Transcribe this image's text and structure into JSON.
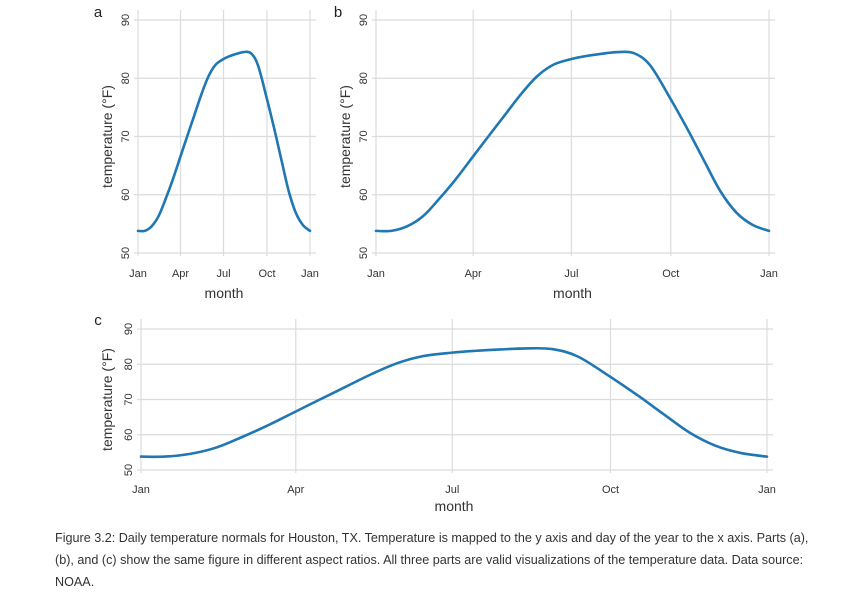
{
  "chart_data": [
    {
      "panel": "a",
      "type": "line",
      "xlabel": "month",
      "ylabel": "temperature (°F)",
      "ylim": [
        50,
        90
      ],
      "yticks": [
        50,
        60,
        70,
        80,
        90
      ],
      "xticks": [
        {
          "value": 1,
          "label": "Jan"
        },
        {
          "value": 91,
          "label": "Apr"
        },
        {
          "value": 182,
          "label": "Jul"
        },
        {
          "value": 274,
          "label": "Oct"
        },
        {
          "value": 365,
          "label": "Jan"
        }
      ],
      "grid": true,
      "series": [
        {
          "color": "#1f77b4",
          "x": [
            1,
            15,
            30,
            45,
            60,
            75,
            91,
            105,
            120,
            135,
            150,
            165,
            182,
            195,
            210,
            225,
            240,
            255,
            274,
            290,
            305,
            320,
            335,
            350,
            365
          ],
          "y": [
            53.8,
            53.8,
            54.6,
            56.4,
            59.4,
            62.7,
            66.6,
            70.0,
            73.6,
            77.2,
            80.3,
            82.3,
            83.3,
            83.8,
            84.2,
            84.5,
            84.3,
            82.2,
            76.4,
            71.1,
            65.8,
            60.6,
            56.9,
            54.8,
            53.8
          ]
        }
      ]
    },
    {
      "panel": "b",
      "type": "line",
      "xlabel": "month",
      "ylabel": "temperature (°F)",
      "ylim": [
        50,
        90
      ],
      "yticks": [
        50,
        60,
        70,
        80,
        90
      ],
      "xticks": [
        {
          "value": 1,
          "label": "Jan"
        },
        {
          "value": 91,
          "label": "Apr"
        },
        {
          "value": 182,
          "label": "Jul"
        },
        {
          "value": 274,
          "label": "Oct"
        },
        {
          "value": 365,
          "label": "Jan"
        }
      ],
      "grid": true,
      "series": [
        {
          "color": "#1f77b4",
          "x": [
            1,
            15,
            30,
            45,
            60,
            75,
            91,
            105,
            120,
            135,
            150,
            165,
            182,
            195,
            210,
            225,
            240,
            255,
            274,
            290,
            305,
            320,
            335,
            350,
            365
          ],
          "y": [
            53.8,
            53.8,
            54.6,
            56.4,
            59.4,
            62.7,
            66.6,
            70.0,
            73.6,
            77.2,
            80.3,
            82.3,
            83.3,
            83.8,
            84.2,
            84.5,
            84.3,
            82.2,
            76.4,
            71.1,
            65.8,
            60.6,
            56.9,
            54.8,
            53.8
          ]
        }
      ]
    },
    {
      "panel": "c",
      "type": "line",
      "xlabel": "month",
      "ylabel": "temperature (°F)",
      "ylim": [
        50,
        90
      ],
      "yticks": [
        50,
        60,
        70,
        80,
        90
      ],
      "xticks": [
        {
          "value": 1,
          "label": "Jan"
        },
        {
          "value": 91,
          "label": "Apr"
        },
        {
          "value": 182,
          "label": "Jul"
        },
        {
          "value": 274,
          "label": "Oct"
        },
        {
          "value": 365,
          "label": "Jan"
        }
      ],
      "grid": true,
      "series": [
        {
          "color": "#1f77b4",
          "x": [
            1,
            15,
            30,
            45,
            60,
            75,
            91,
            105,
            120,
            135,
            150,
            165,
            182,
            195,
            210,
            225,
            240,
            255,
            274,
            290,
            305,
            320,
            335,
            350,
            365
          ],
          "y": [
            53.8,
            53.8,
            54.6,
            56.4,
            59.4,
            62.7,
            66.6,
            70.0,
            73.6,
            77.2,
            80.3,
            82.3,
            83.3,
            83.8,
            84.2,
            84.5,
            84.3,
            82.2,
            76.4,
            71.1,
            65.8,
            60.6,
            56.9,
            54.8,
            53.8
          ]
        }
      ]
    }
  ],
  "caption": "Figure 3.2: Daily temperature normals for Houston, TX. Temperature is mapped to the y axis and day of the year to the x axis. Parts (a), (b), and (c) show the same figure in different aspect ratios. All three parts are valid visualizations of the temperature data. Data source: NOAA."
}
